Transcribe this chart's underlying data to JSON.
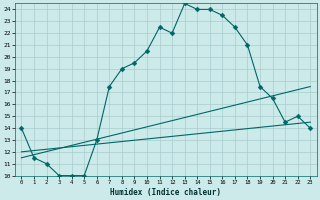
{
  "xlabel": "Humidex (Indice chaleur)",
  "background_color": "#cceaea",
  "grid_color": "#aacccc",
  "line_color": "#006666",
  "xlim": [
    -0.5,
    23.5
  ],
  "ylim": [
    10,
    24.5
  ],
  "xticks": [
    0,
    1,
    2,
    3,
    4,
    5,
    6,
    7,
    8,
    9,
    10,
    11,
    12,
    13,
    14,
    15,
    16,
    17,
    18,
    19,
    20,
    21,
    22,
    23
  ],
  "yticks": [
    10,
    11,
    12,
    13,
    14,
    15,
    16,
    17,
    18,
    19,
    20,
    21,
    22,
    23,
    24
  ],
  "curve1_x": [
    0,
    1,
    2,
    3,
    4,
    5,
    6,
    7,
    8,
    9,
    10,
    11,
    12,
    13,
    14,
    15,
    16,
    17,
    18,
    19,
    20,
    21,
    22,
    23
  ],
  "curve1_y": [
    14,
    11.5,
    11,
    10,
    10,
    10,
    13,
    17.5,
    19,
    19.5,
    20.5,
    22.5,
    22,
    24.5,
    24,
    24,
    23.5,
    22.5,
    21,
    17.5,
    16.5,
    14.5,
    15,
    14
  ],
  "curve2_x": [
    0,
    23
  ],
  "curve2_y": [
    11.5,
    17.5
  ],
  "curve3_x": [
    0,
    23
  ],
  "curve3_y": [
    12,
    14.5
  ],
  "markersize": 2.5
}
